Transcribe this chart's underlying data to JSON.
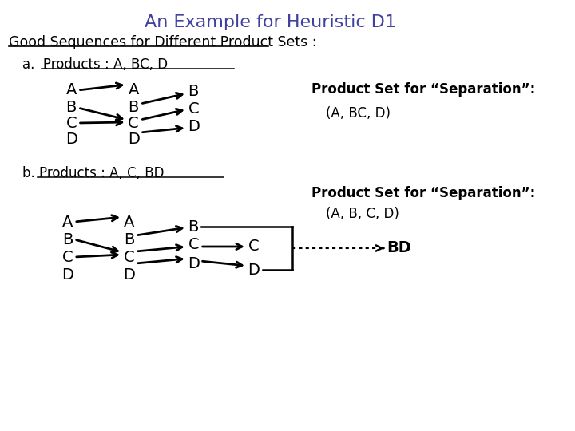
{
  "title": "An Example for Heuristic D1",
  "title_color": "#4040a0",
  "title_fontsize": 16,
  "bg_color": "#ffffff",
  "main_label": "Good Sequences for Different Product Sets :",
  "sub_a_label": "a.  Products : A, BC, D",
  "sub_b_label": "b. Products : A, C, BD",
  "sep_label_a": "Product Set for “Separation”:",
  "sep_value_a": "(A, BC, D)",
  "sep_label_b": "Product Set for “Separation”:",
  "sep_value_b": "(A, B, C, D)",
  "bd_label": "BD"
}
